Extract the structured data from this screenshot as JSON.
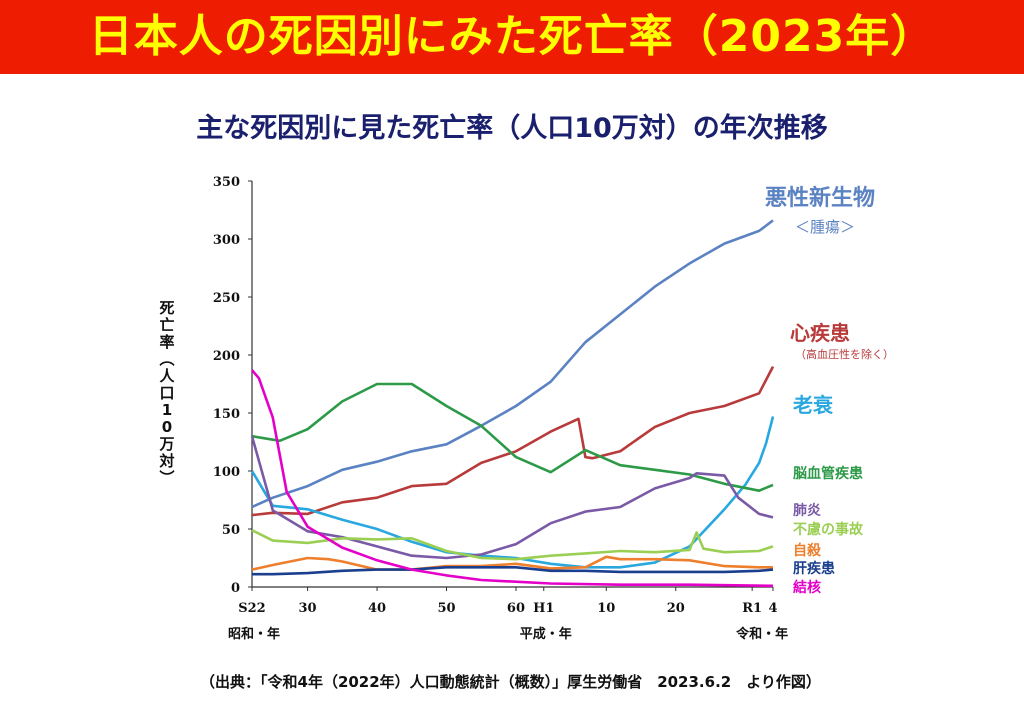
{
  "banner": {
    "title": "日本人の死因別にみた死亡率（2023年）"
  },
  "source_note": "（出典：「令和4年（2022年）人口動態統計（概数）」厚生労働省　2023.6.2　より作図）",
  "colors": {
    "banner_bg": "#ee1c00",
    "banner_text": "#ffff00",
    "subtitle": "#1a1f6e"
  },
  "chart_data": {
    "type": "line",
    "title": "主な死因別に見た死亡率（人口10万対）の年次推移",
    "ylabel": "死亡率（人口10万対）",
    "xlabel": "",
    "ylim": [
      0,
      350
    ],
    "yticks": [
      0,
      50,
      100,
      150,
      200,
      250,
      300,
      350
    ],
    "xlim": [
      1947,
      2022
    ],
    "xticks": [
      {
        "x": 1947,
        "label": "S22"
      },
      {
        "x": 1955,
        "label": "30"
      },
      {
        "x": 1965,
        "label": "40"
      },
      {
        "x": 1975,
        "label": "50"
      },
      {
        "x": 1985,
        "label": "60"
      },
      {
        "x": 1989,
        "label": "H1"
      },
      {
        "x": 1998,
        "label": "10"
      },
      {
        "x": 2008,
        "label": "20"
      },
      {
        "x": 2019,
        "label": "R1"
      },
      {
        "x": 2022,
        "label": "4"
      }
    ],
    "era_labels": [
      {
        "x": 1947,
        "label": "昭和・年"
      },
      {
        "x": 1989,
        "label": "平成・年"
      },
      {
        "x": 2019,
        "label": "令和・年"
      }
    ],
    "grid": false,
    "legend": "right",
    "series": [
      {
        "name": "悪性新生物",
        "sub": "＜腫瘍＞",
        "color": "#5b82c2",
        "x": [
          1947,
          1950,
          1955,
          1960,
          1965,
          1970,
          1975,
          1980,
          1985,
          1990,
          1995,
          2000,
          2005,
          2010,
          2015,
          2020,
          2022
        ],
        "y": [
          69,
          77,
          87,
          101,
          108,
          117,
          123,
          139,
          156,
          177,
          211,
          235,
          259,
          279,
          296,
          307,
          316
        ]
      },
      {
        "name": "心疾患",
        "sub": "（高血圧性を除く）",
        "color": "#b83a3a",
        "x": [
          1947,
          1950,
          1955,
          1960,
          1965,
          1970,
          1975,
          1980,
          1985,
          1990,
          1994,
          1995,
          1996,
          2000,
          2005,
          2010,
          2015,
          2020,
          2022
        ],
        "y": [
          62,
          64,
          63,
          73,
          77,
          87,
          89,
          107,
          117,
          134,
          145,
          112,
          111,
          117,
          138,
          150,
          156,
          167,
          190
        ]
      },
      {
        "name": "老衰",
        "sub": "",
        "color": "#29a8e0",
        "x": [
          1947,
          1950,
          1955,
          1960,
          1965,
          1970,
          1975,
          1980,
          1985,
          1990,
          1995,
          2000,
          2005,
          2010,
          2015,
          2018,
          2020,
          2021,
          2022
        ],
        "y": [
          100,
          70,
          67,
          58,
          50,
          39,
          30,
          27,
          25,
          20,
          17,
          17,
          21,
          35,
          67,
          88,
          107,
          124,
          147
        ]
      },
      {
        "name": "脳血管疾患",
        "sub": "",
        "color": "#2d9a48",
        "x": [
          1947,
          1950,
          1951,
          1955,
          1960,
          1965,
          1970,
          1975,
          1980,
          1985,
          1990,
          1995,
          2000,
          2005,
          2010,
          2015,
          2020,
          2022
        ],
        "y": [
          130,
          127,
          126,
          136,
          160,
          175,
          175,
          156,
          139,
          112,
          99,
          118,
          105,
          101,
          97,
          89,
          83,
          88
        ]
      },
      {
        "name": "肺炎",
        "sub": "",
        "color": "#7a5aa6",
        "x": [
          1947,
          1950,
          1955,
          1960,
          1965,
          1970,
          1975,
          1980,
          1985,
          1990,
          1995,
          2000,
          2005,
          2010,
          2011,
          2015,
          2017,
          2020,
          2022
        ],
        "y": [
          130,
          66,
          48,
          43,
          35,
          27,
          25,
          28,
          37,
          55,
          65,
          69,
          85,
          94,
          98,
          96,
          77,
          63,
          60
        ]
      },
      {
        "name": "不慮の事故",
        "sub": "",
        "color": "#9bcf53",
        "x": [
          1947,
          1950,
          1955,
          1960,
          1965,
          1970,
          1975,
          1980,
          1985,
          1990,
          1995,
          2000,
          2005,
          2010,
          2011,
          2012,
          2015,
          2020,
          2022
        ],
        "y": [
          49,
          40,
          38,
          42,
          41,
          42,
          31,
          25,
          24,
          27,
          29,
          31,
          30,
          32,
          47,
          33,
          30,
          31,
          35
        ]
      },
      {
        "name": "自殺",
        "sub": "",
        "color": "#ee7f2d",
        "x": [
          1947,
          1950,
          1955,
          1958,
          1960,
          1965,
          1970,
          1975,
          1980,
          1985,
          1990,
          1995,
          1998,
          2000,
          2005,
          2010,
          2015,
          2020,
          2022
        ],
        "y": [
          15,
          19,
          25,
          24,
          22,
          15,
          15,
          18,
          18,
          20,
          16,
          17,
          26,
          24,
          24,
          23,
          18,
          17,
          17
        ]
      },
      {
        "name": "肝疾患",
        "sub": "",
        "color": "#1b3f8f",
        "x": [
          1947,
          1950,
          1955,
          1960,
          1965,
          1970,
          1975,
          1980,
          1985,
          1990,
          1995,
          2000,
          2005,
          2010,
          2015,
          2020,
          2022
        ],
        "y": [
          11,
          11,
          12,
          14,
          15,
          15,
          17,
          17,
          17,
          14,
          14,
          13,
          13,
          13,
          13,
          14,
          15
        ]
      },
      {
        "name": "結核",
        "sub": "",
        "color": "#e400c8",
        "x": [
          1947,
          1948,
          1950,
          1952,
          1955,
          1960,
          1965,
          1970,
          1975,
          1980,
          1990,
          2000,
          2010,
          2022
        ],
        "y": [
          187,
          180,
          146,
          82,
          52,
          34,
          23,
          15,
          10,
          6,
          3,
          2,
          2,
          1
        ]
      }
    ]
  }
}
